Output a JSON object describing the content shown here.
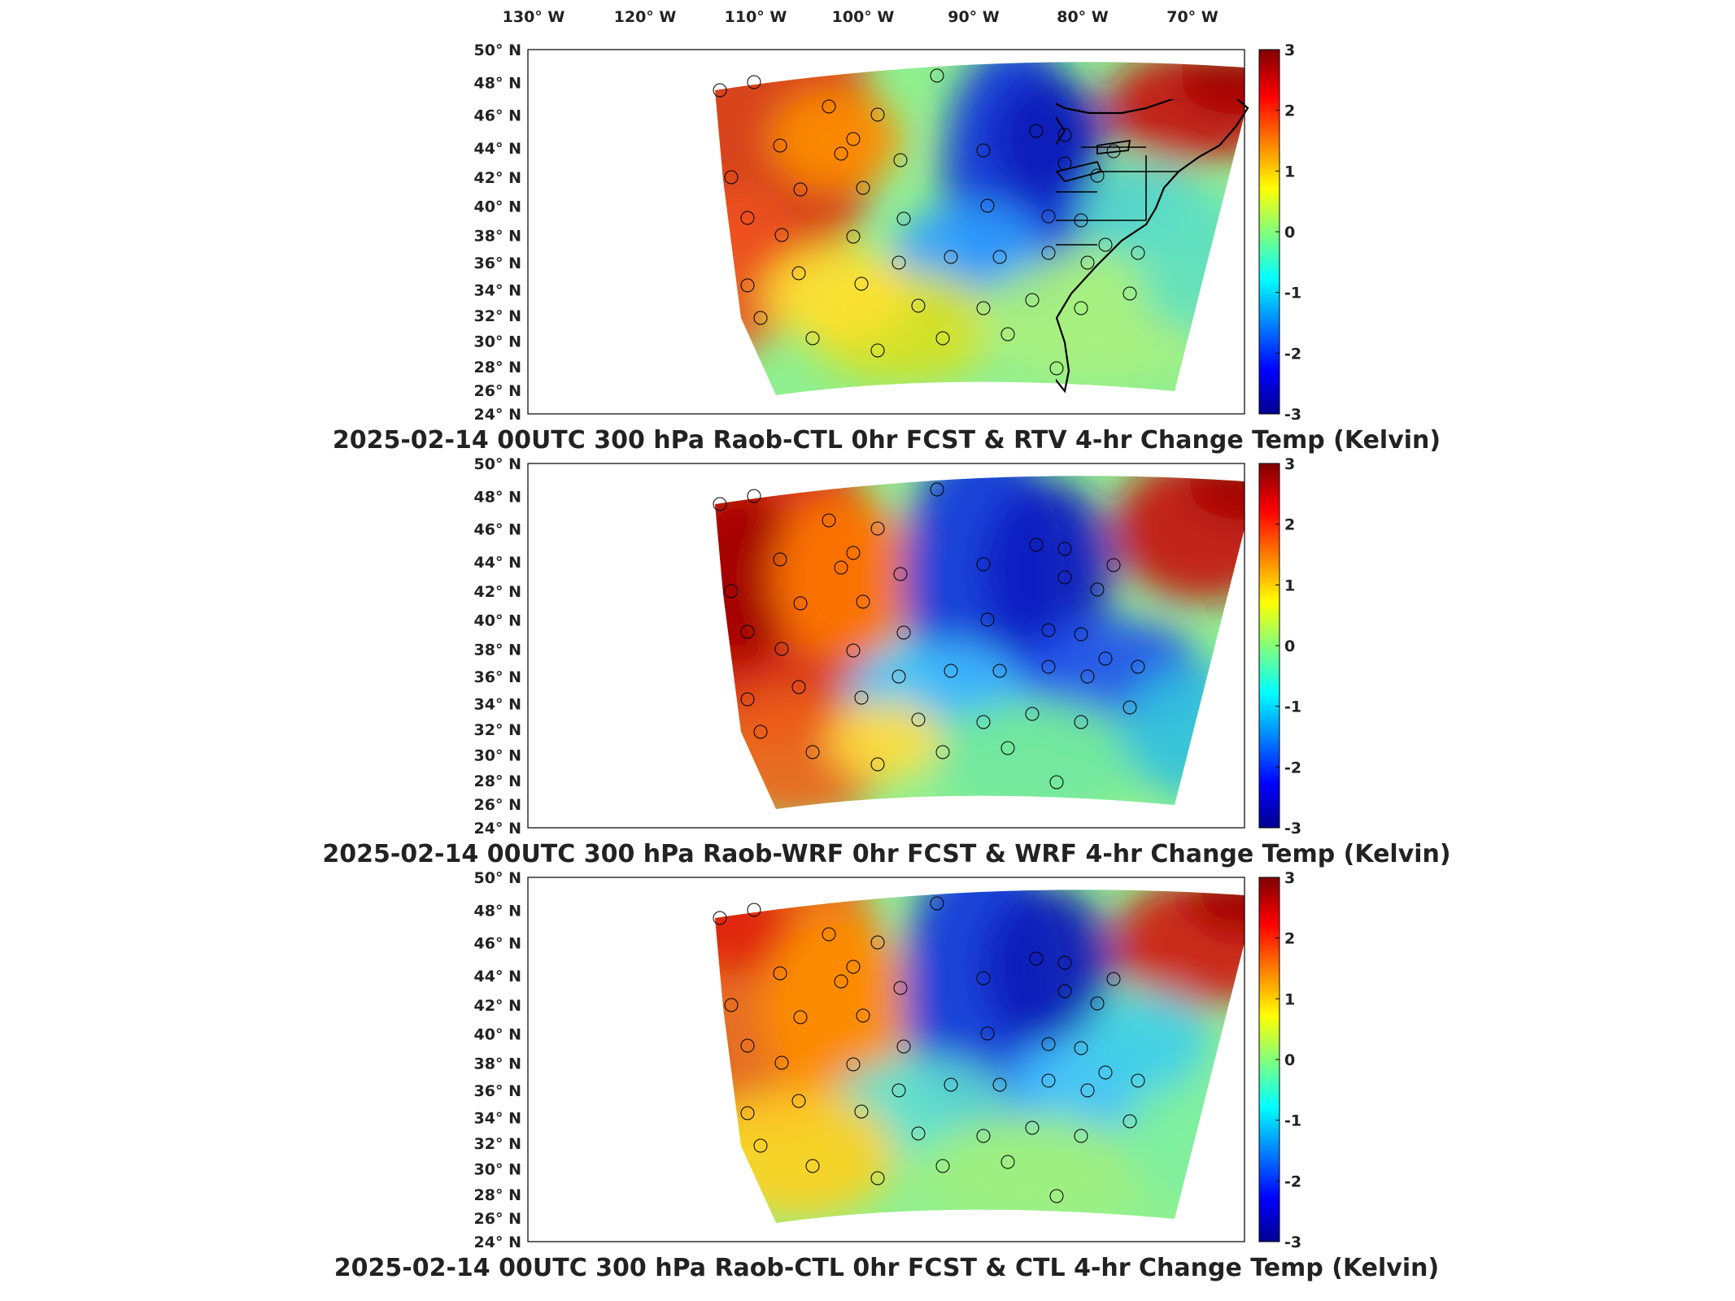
{
  "figure": {
    "longitude_labels": [
      "130° W",
      "120° W",
      "110° W",
      "100° W",
      "90° W",
      "80° W",
      "70° W"
    ],
    "latitude_labels": [
      "50° N",
      "48° N",
      "46° N",
      "44° N",
      "42° N",
      "40° N",
      "38° N",
      "36° N",
      "34° N",
      "32° N",
      "30° N",
      "28° N",
      "26° N",
      "24° N"
    ],
    "colorbar": {
      "ticks": [
        "3",
        "2",
        "1",
        "0",
        "-1",
        "-2",
        "-3"
      ],
      "range": [
        -3,
        3
      ],
      "colormap": "jet"
    }
  },
  "panels": [
    {
      "title": "2025-02-14 00UTC 300 hPa Raob-CTL 0hr FCST & RTV 4-hr Change Temp (Kelvin)",
      "field": "RTV 4-hr Change Temp"
    },
    {
      "title": "2025-02-14 00UTC 300 hPa Raob-WRF 0hr FCST & WRF 4-hr Change Temp (Kelvin)",
      "field": "WRF 4-hr Change Temp"
    },
    {
      "title": "2025-02-14 00UTC 300 hPa Raob-CTL 0hr FCST & CTL 4-hr Change Temp (Kelvin)",
      "field": "CTL 4-hr Change Temp"
    }
  ],
  "colors": {
    "jet_stops": [
      "#00008f",
      "#0000ff",
      "#00ffff",
      "#ffff00",
      "#ff0000",
      "#800000"
    ],
    "frame": "#000000",
    "map_lines": "#000000"
  }
}
